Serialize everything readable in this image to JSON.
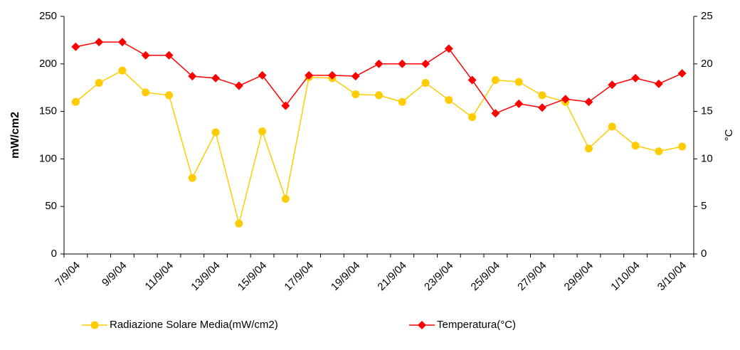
{
  "chart_data": {
    "type": "line",
    "categories": [
      "7/9/04",
      null,
      "9/9/04",
      null,
      "11/9/04",
      null,
      "13/9/04",
      null,
      "15/9/04",
      null,
      "17/9/04",
      null,
      "19/9/04",
      null,
      "21/9/04",
      null,
      "23/9/04",
      null,
      "25/9/04",
      null,
      "27/9/04",
      null,
      "29/9/04",
      null,
      "1/10/04",
      null,
      "3/10/04"
    ],
    "series": [
      {
        "name": "Radiazione Solare Media(mW/cm2)",
        "color": "#ffcc00",
        "marker": "circle",
        "values": [
          160,
          180,
          193,
          170,
          167,
          80,
          128,
          32,
          129,
          58,
          186,
          185,
          168,
          167,
          160,
          180,
          162,
          144,
          183,
          181,
          167,
          160,
          111,
          134,
          114,
          108,
          113
        ]
      },
      {
        "name": "Temperatura(°C)",
        "color": "#ff0000",
        "marker": "diamond",
        "axis": "y2",
        "values": [
          21.8,
          22.3,
          22.3,
          20.9,
          20.9,
          18.7,
          18.5,
          17.7,
          18.8,
          15.6,
          18.8,
          18.8,
          18.7,
          20.0,
          20.0,
          20.0,
          21.6,
          18.3,
          14.8,
          15.8,
          15.4,
          16.3,
          16.0,
          17.8,
          18.5,
          17.9,
          19.0
        ]
      }
    ],
    "y_label": "mW/cm2",
    "y2_label": "°C",
    "ylim": [
      0,
      250
    ],
    "yticks": [
      0,
      50,
      100,
      150,
      200,
      250
    ],
    "y2lim": [
      0,
      25
    ],
    "y2ticks": [
      0,
      5,
      10,
      15,
      20,
      25
    ],
    "grid": false
  }
}
